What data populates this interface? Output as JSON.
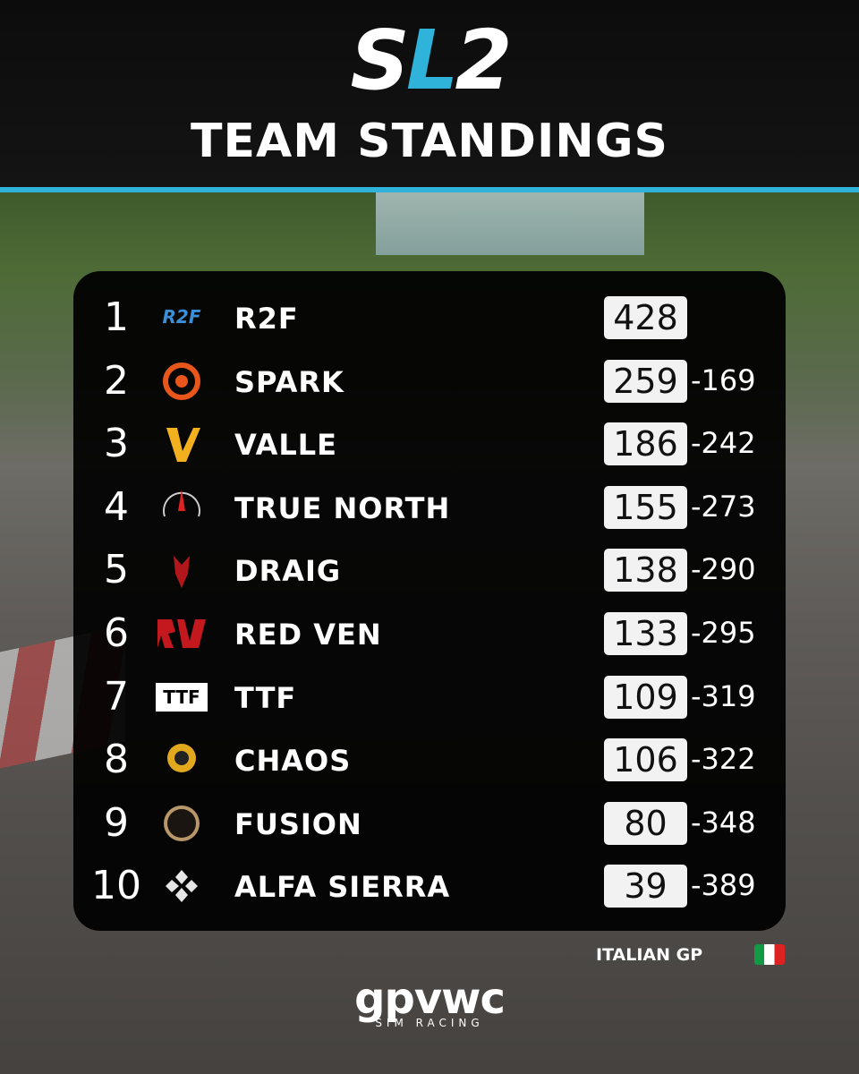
{
  "header": {
    "logo_start": "S",
    "logo_mid": "L",
    "logo_end": "2",
    "title": "TEAM STANDINGS"
  },
  "table": {
    "rows": [
      {
        "position": "1",
        "logo_text": "R2F",
        "team": "R2F",
        "points": "428"
      },
      {
        "position": "2",
        "team": "SPARK",
        "points": "259",
        "gap": "-169"
      },
      {
        "position": "3",
        "team": "VALLE",
        "points": "186",
        "gap": "-242"
      },
      {
        "position": "4",
        "team": "TRUE NORTH",
        "points": "155",
        "gap": "-273"
      },
      {
        "position": "5",
        "team": "DRAIG",
        "points": "138",
        "gap": "-290"
      },
      {
        "position": "6",
        "team": "RED VEN",
        "points": "133",
        "gap": "-295"
      },
      {
        "position": "7",
        "logo_text": "TTF",
        "team": "TTF",
        "points": "109",
        "gap": "-319"
      },
      {
        "position": "8",
        "team": "CHAOS",
        "points": "106",
        "gap": "-322"
      },
      {
        "position": "9",
        "team": "FUSION",
        "points": "80",
        "gap": "-348"
      },
      {
        "position": "10",
        "team": "ALFA SIERRA",
        "points": "39",
        "gap": "-389"
      }
    ]
  },
  "footer": {
    "race": "ITALIAN GP",
    "brand": "gpvwc",
    "brand_sub": "SIM RACING"
  }
}
